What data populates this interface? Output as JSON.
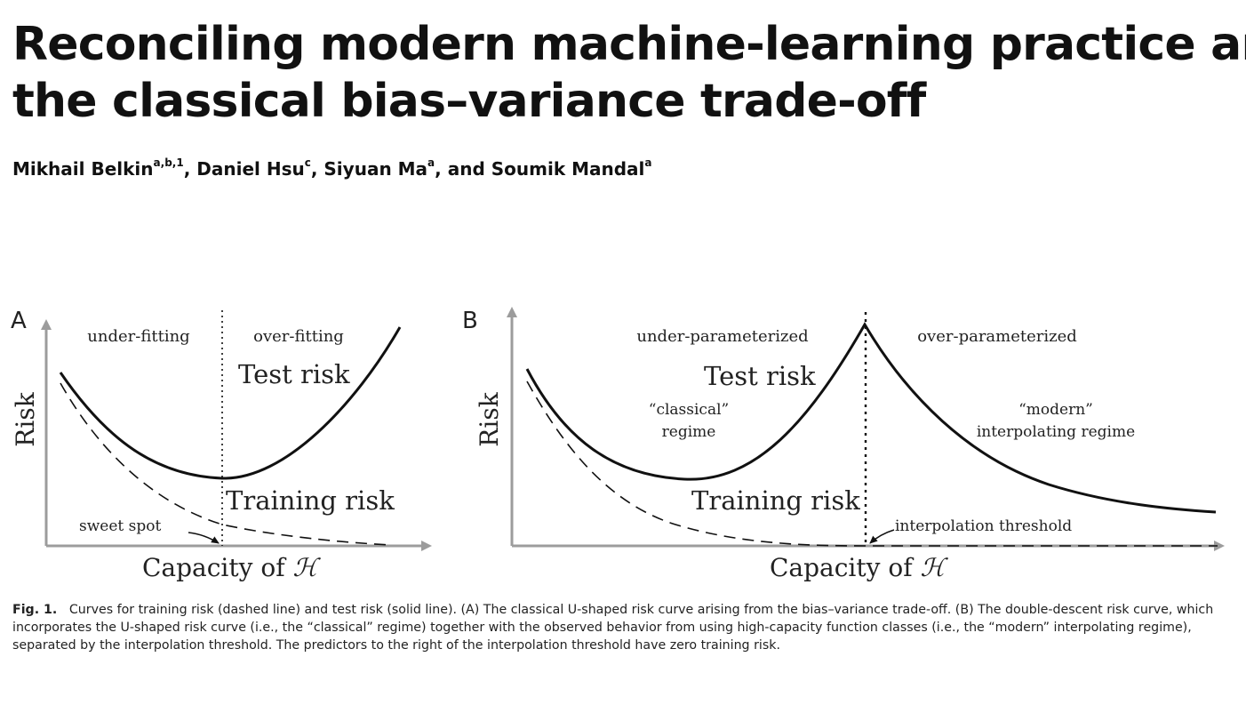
{
  "paper": {
    "title_line1": "Reconciling modern machine-learning practice and",
    "title_line2": "the classical bias–variance trade-off",
    "authors": [
      {
        "name": "Mikhail Belkin",
        "aff": "a,b,1",
        "sep": ", "
      },
      {
        "name": "Daniel Hsu",
        "aff": "c",
        "sep": ", "
      },
      {
        "name": "Siyuan Ma",
        "aff": "a",
        "sep": ", and "
      },
      {
        "name": "Soumik Mandal",
        "aff": "a",
        "sep": ""
      }
    ]
  },
  "figure": {
    "panel_a": {
      "panel_label": "A",
      "ylabel": "Risk",
      "xlabel": "Capacity of ",
      "xlabel_symbol": "H",
      "region_left": "under-fitting",
      "region_right": "over-fitting",
      "test_label": "Test risk",
      "train_label": "Training risk",
      "annotation": "sweet spot"
    },
    "panel_b": {
      "panel_label": "B",
      "ylabel": "Risk",
      "xlabel": "Capacity of ",
      "xlabel_symbol": "H",
      "region_left": "under-parameterized",
      "region_right": "over-parameterized",
      "test_label": "Test risk",
      "train_label": "Training risk",
      "classical_line1": "“classical”",
      "classical_line2": "regime",
      "modern_line1": "“modern”",
      "modern_line2": "interpolating regime",
      "annotation": "interpolation threshold"
    }
  },
  "caption": {
    "label": "Fig. 1.",
    "text": "Curves for training risk (dashed line) and test risk (solid line). (A) The classical U-shaped risk curve arising from the bias–variance trade-off. (B) The double-descent risk curve, which incorporates the U-shaped risk curve (i.e., the “classical” regime) together with the observed behavior from using high-capacity function classes (i.e., the “modern” interpolating regime), separated by the interpolation threshold. The predictors to the right of the interpolation threshold have zero training risk."
  }
}
